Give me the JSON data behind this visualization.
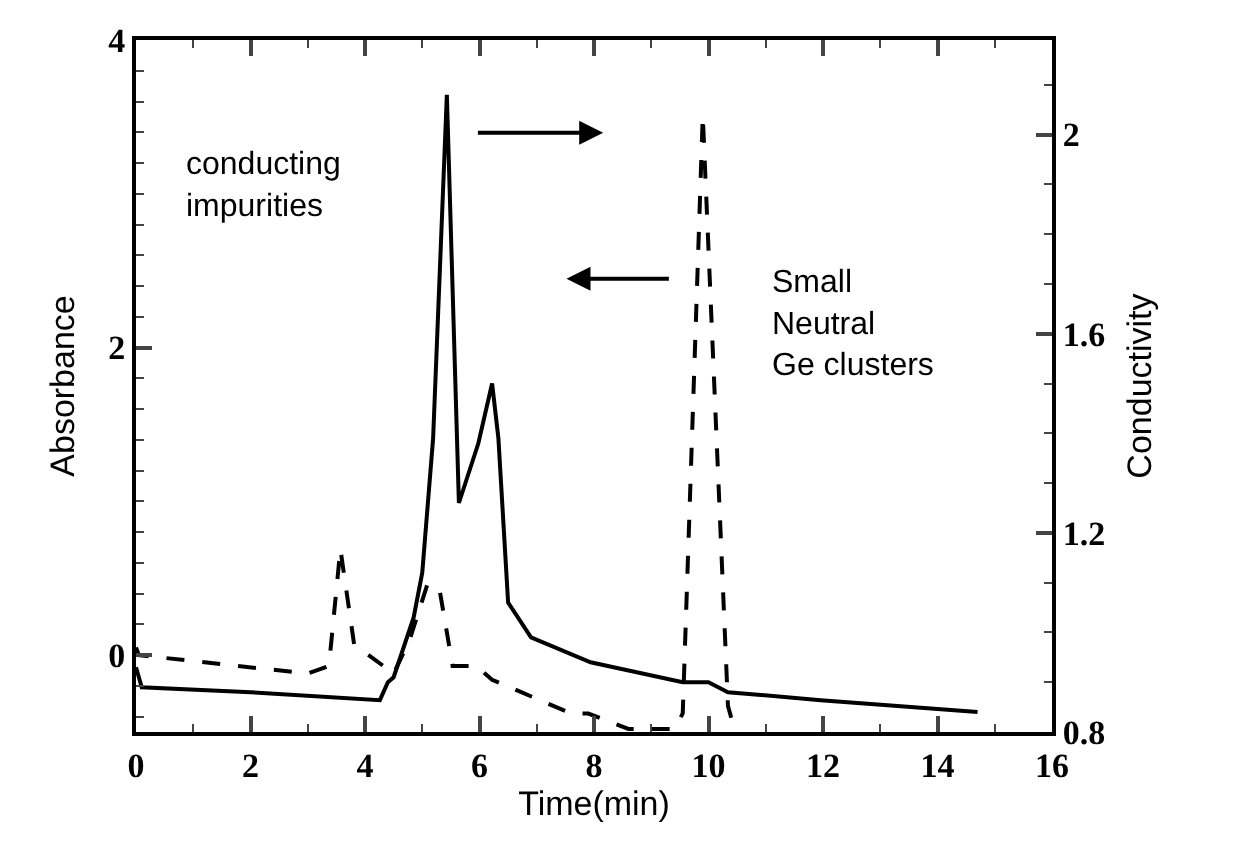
{
  "chart_data": {
    "type": "line",
    "xlabel": "Time(min)",
    "ylabel": "Absorbance",
    "y2label": "Conductivity",
    "xlim": [
      0,
      16
    ],
    "xticks": [
      0,
      2,
      4,
      6,
      8,
      10,
      12,
      14,
      16
    ],
    "ylim": [
      -0.5,
      4
    ],
    "yticks": [
      0,
      2,
      4
    ],
    "y2lim": [
      0.8,
      2.19
    ],
    "y2ticks": [
      0.8,
      1.2,
      1.6,
      2
    ],
    "marker": "none",
    "series": [
      {
        "color": "#000000",
        "axis": "y2",
        "line_style": "solid",
        "x": [
          0,
          0.1,
          2,
          4.26,
          4.4,
          4.5,
          4.85,
          5.0,
          5.19,
          5.43,
          5.64,
          5.98,
          6.22,
          6.33,
          6.5,
          6.9,
          7.94,
          9.55,
          10.0,
          10.34,
          11.96,
          14.7
        ],
        "values": [
          0.93,
          0.89,
          0.88,
          0.864,
          0.9,
          0.91,
          1.03,
          1.12,
          1.39,
          2.08,
          1.26,
          1.38,
          1.5,
          1.39,
          1.06,
          0.99,
          0.94,
          0.9,
          0.9,
          0.88,
          0.864,
          0.84
        ]
      },
      {
        "color": "#000000",
        "axis": "y",
        "line_style": "dashed",
        "x": [
          0,
          0.05,
          3.0,
          3.37,
          3.57,
          3.81,
          4.5,
          4.78,
          5.09,
          5.3,
          5.53,
          5.94,
          6.22,
          7.6,
          7.9,
          8.6,
          9.4,
          9.55,
          9.9,
          10.34,
          10.45
        ],
        "values": [
          0.05,
          0.0,
          -0.12,
          -0.07,
          0.69,
          0.07,
          -0.12,
          0.1,
          0.46,
          0.43,
          -0.07,
          -0.07,
          -0.16,
          -0.38,
          -0.38,
          -0.48,
          -0.48,
          -0.38,
          3.51,
          -0.33,
          -0.48
        ]
      }
    ],
    "annotations": [
      "conducting impurities",
      "Small Neutral Ge clusters"
    ]
  }
}
